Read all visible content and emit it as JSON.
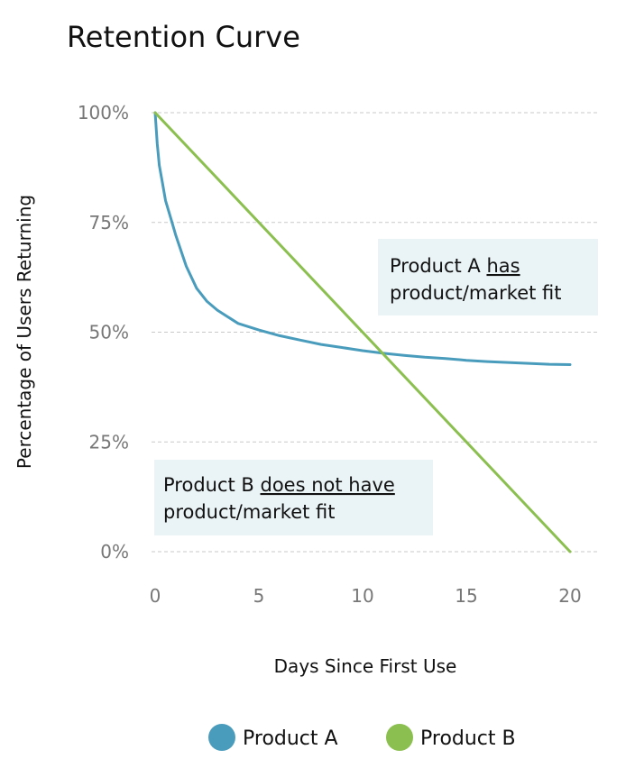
{
  "chart_data": {
    "type": "line",
    "title": "Retention Curve",
    "xlabel": "Days Since First Use",
    "ylabel": "Percentage of Users Returning",
    "xlim": [
      0,
      20
    ],
    "ylim": [
      0,
      100
    ],
    "x_ticks": [
      0,
      5,
      10,
      15,
      20
    ],
    "x_tick_labels": [
      "0",
      "5",
      "10",
      "15",
      "20"
    ],
    "y_ticks": [
      0,
      25,
      50,
      75,
      100
    ],
    "y_tick_labels": [
      "0%",
      "25%",
      "50%",
      "75%",
      "100%"
    ],
    "grid": true,
    "legend_position": "bottom",
    "series": [
      {
        "name": "Product A",
        "color": "#4a9cbd",
        "x": [
          0,
          0.1,
          0.2,
          0.35,
          0.5,
          0.75,
          1,
          1.5,
          2,
          2.5,
          3,
          3.5,
          4,
          5,
          6,
          7,
          8,
          9,
          10,
          11,
          12,
          13,
          14,
          15,
          16,
          17,
          18,
          19,
          20
        ],
        "y": [
          100,
          93,
          88,
          84,
          80,
          76,
          72,
          65,
          60,
          57,
          55,
          53.5,
          52,
          50.5,
          49.2,
          48.2,
          47.2,
          46.5,
          45.8,
          45.2,
          44.7,
          44.3,
          44,
          43.6,
          43.3,
          43.1,
          42.9,
          42.7,
          42.6
        ]
      },
      {
        "name": "Product B",
        "color": "#8bbf4f",
        "x": [
          0,
          20
        ],
        "y": [
          100,
          0
        ]
      }
    ],
    "annotations": [
      {
        "target": "Product A",
        "lines": [
          [
            {
              "text": "Product A ",
              "underline": false
            },
            {
              "text": "has",
              "underline": true
            }
          ],
          [
            {
              "text": "product/market fit",
              "underline": false
            }
          ]
        ]
      },
      {
        "target": "Product B",
        "lines": [
          [
            {
              "text": "Product B ",
              "underline": false
            },
            {
              "text": "does not have",
              "underline": true
            }
          ],
          [
            {
              "text": "product/market fit",
              "underline": false
            }
          ]
        ]
      }
    ]
  }
}
